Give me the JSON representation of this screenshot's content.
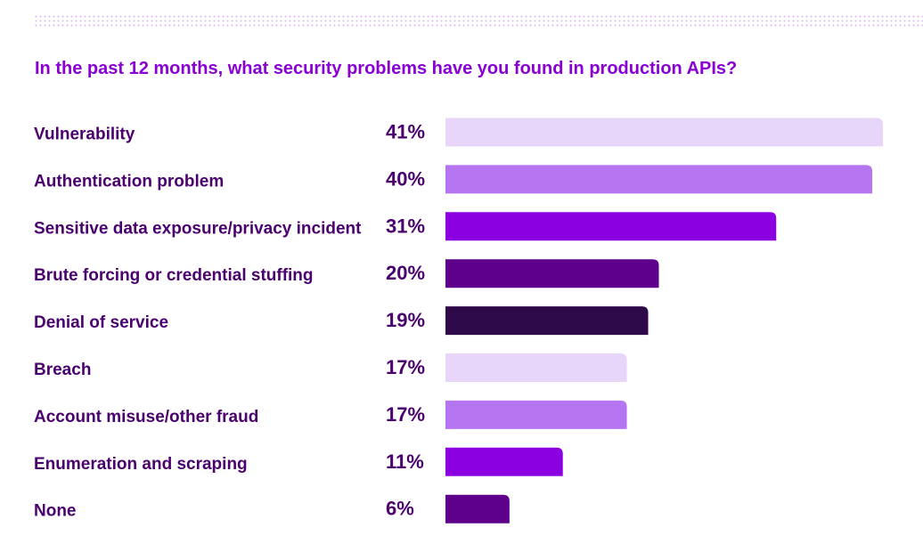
{
  "title": "In the past 12 months, what security problems have you found in production APIs?",
  "chart_data": {
    "type": "bar",
    "orientation": "horizontal",
    "title": "In the past 12 months, what security problems have you found in production APIs?",
    "categories": [
      "Vulnerability",
      "Authentication problem",
      "Sensitive data exposure/privacy incident",
      "Brute forcing or credential stuffing",
      "Denial of service",
      "Breach",
      "Account misuse/other fraud",
      "Enumeration and scraping",
      "None"
    ],
    "values": [
      41,
      40,
      31,
      20,
      19,
      17,
      17,
      11,
      6
    ],
    "value_labels": [
      "41%",
      "40%",
      "31%",
      "20%",
      "19%",
      "17%",
      "17%",
      "11%",
      "6%"
    ],
    "unit": "%",
    "xlim": [
      0,
      41
    ],
    "grid": false,
    "legend": "none",
    "colors": [
      "#e8d5fa",
      "#b575f0",
      "#8b00e0",
      "#5f008c",
      "#2f0a4a",
      "#e8d5fa",
      "#b575f0",
      "#8b00e0",
      "#5f008c"
    ]
  },
  "theme": {
    "title_color": "#8a00d4",
    "label_color": "#4a006e",
    "decor_dot_color": "#d9b8ee"
  }
}
